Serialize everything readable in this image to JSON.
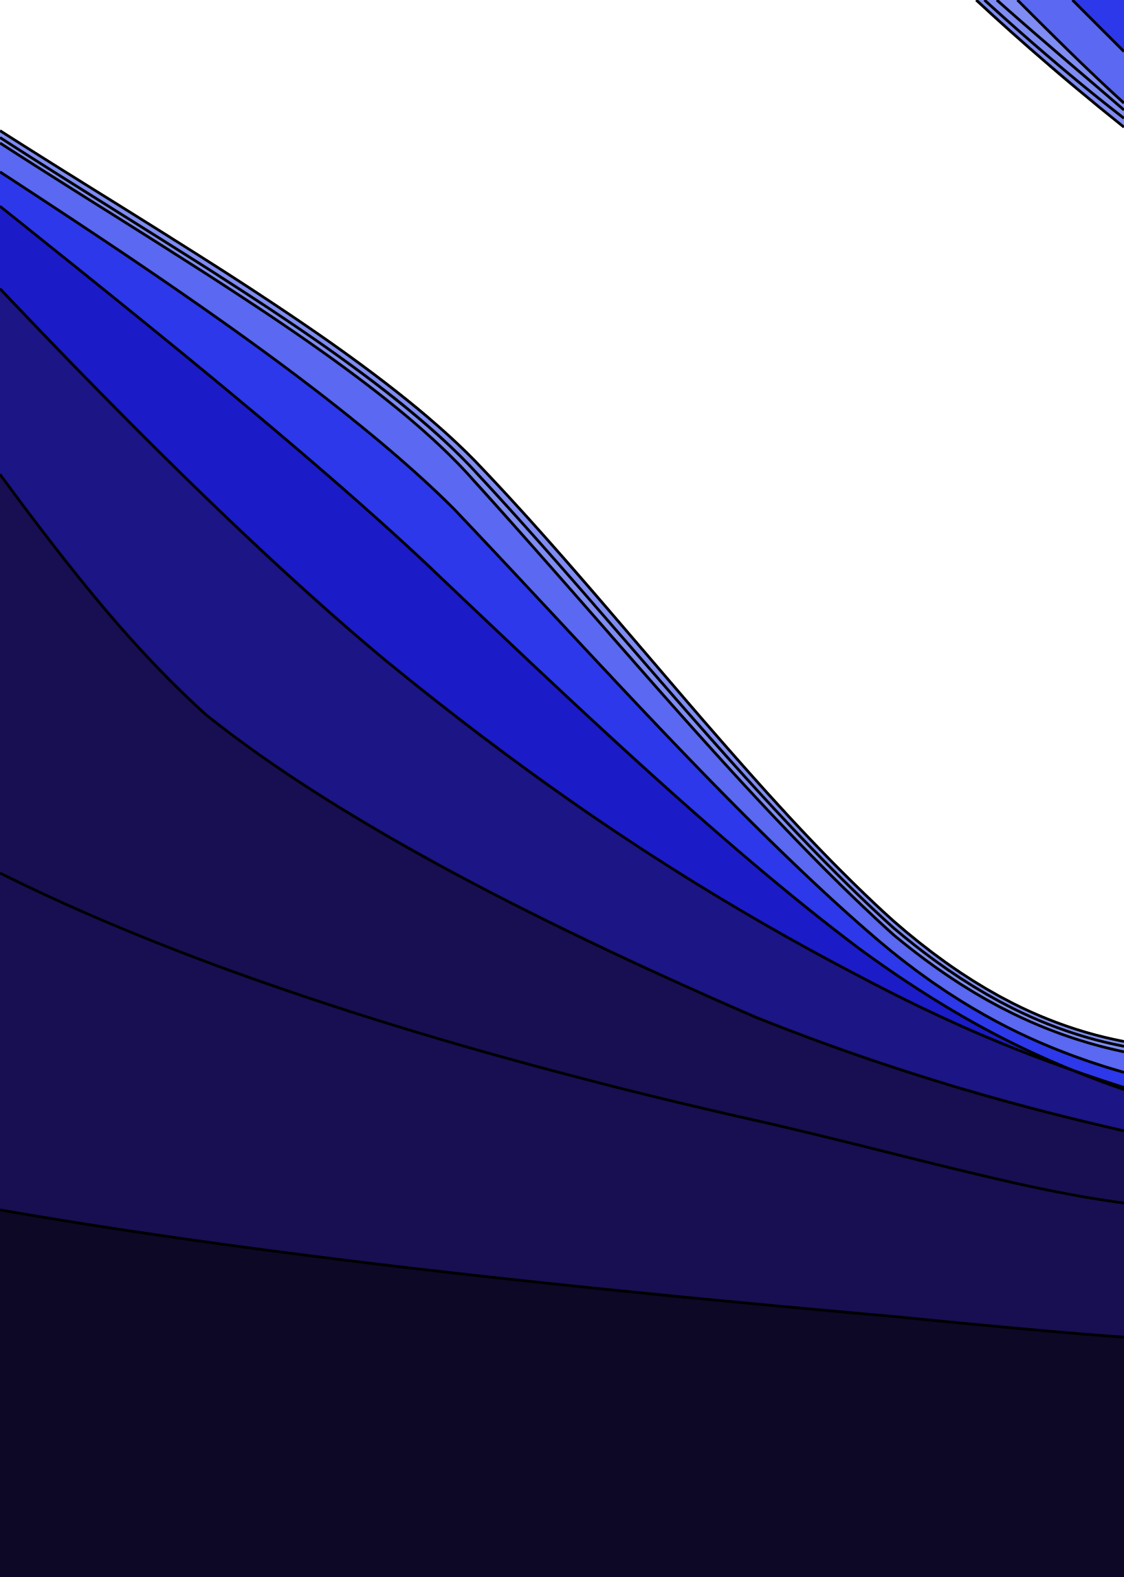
{
  "artwork": {
    "background_color": "#ffffff",
    "outline_color": "#000000",
    "bands": [
      {
        "name": "band-darkest",
        "color": "#0d0826"
      },
      {
        "name": "band-deep-indigo",
        "color": "#170f52"
      },
      {
        "name": "band-indigo",
        "color": "#1b1585"
      },
      {
        "name": "band-royal-blue",
        "color": "#1b1bc8"
      },
      {
        "name": "band-bright-blue",
        "color": "#2d38ea"
      },
      {
        "name": "band-periwinkle",
        "color": "#5a68f2"
      },
      {
        "name": "band-light-periwinkle",
        "color": "#7f8cf4"
      }
    ],
    "corner_wave_colors": [
      "#7f8cf4",
      "#5a68f2",
      "#2d38ea"
    ]
  }
}
